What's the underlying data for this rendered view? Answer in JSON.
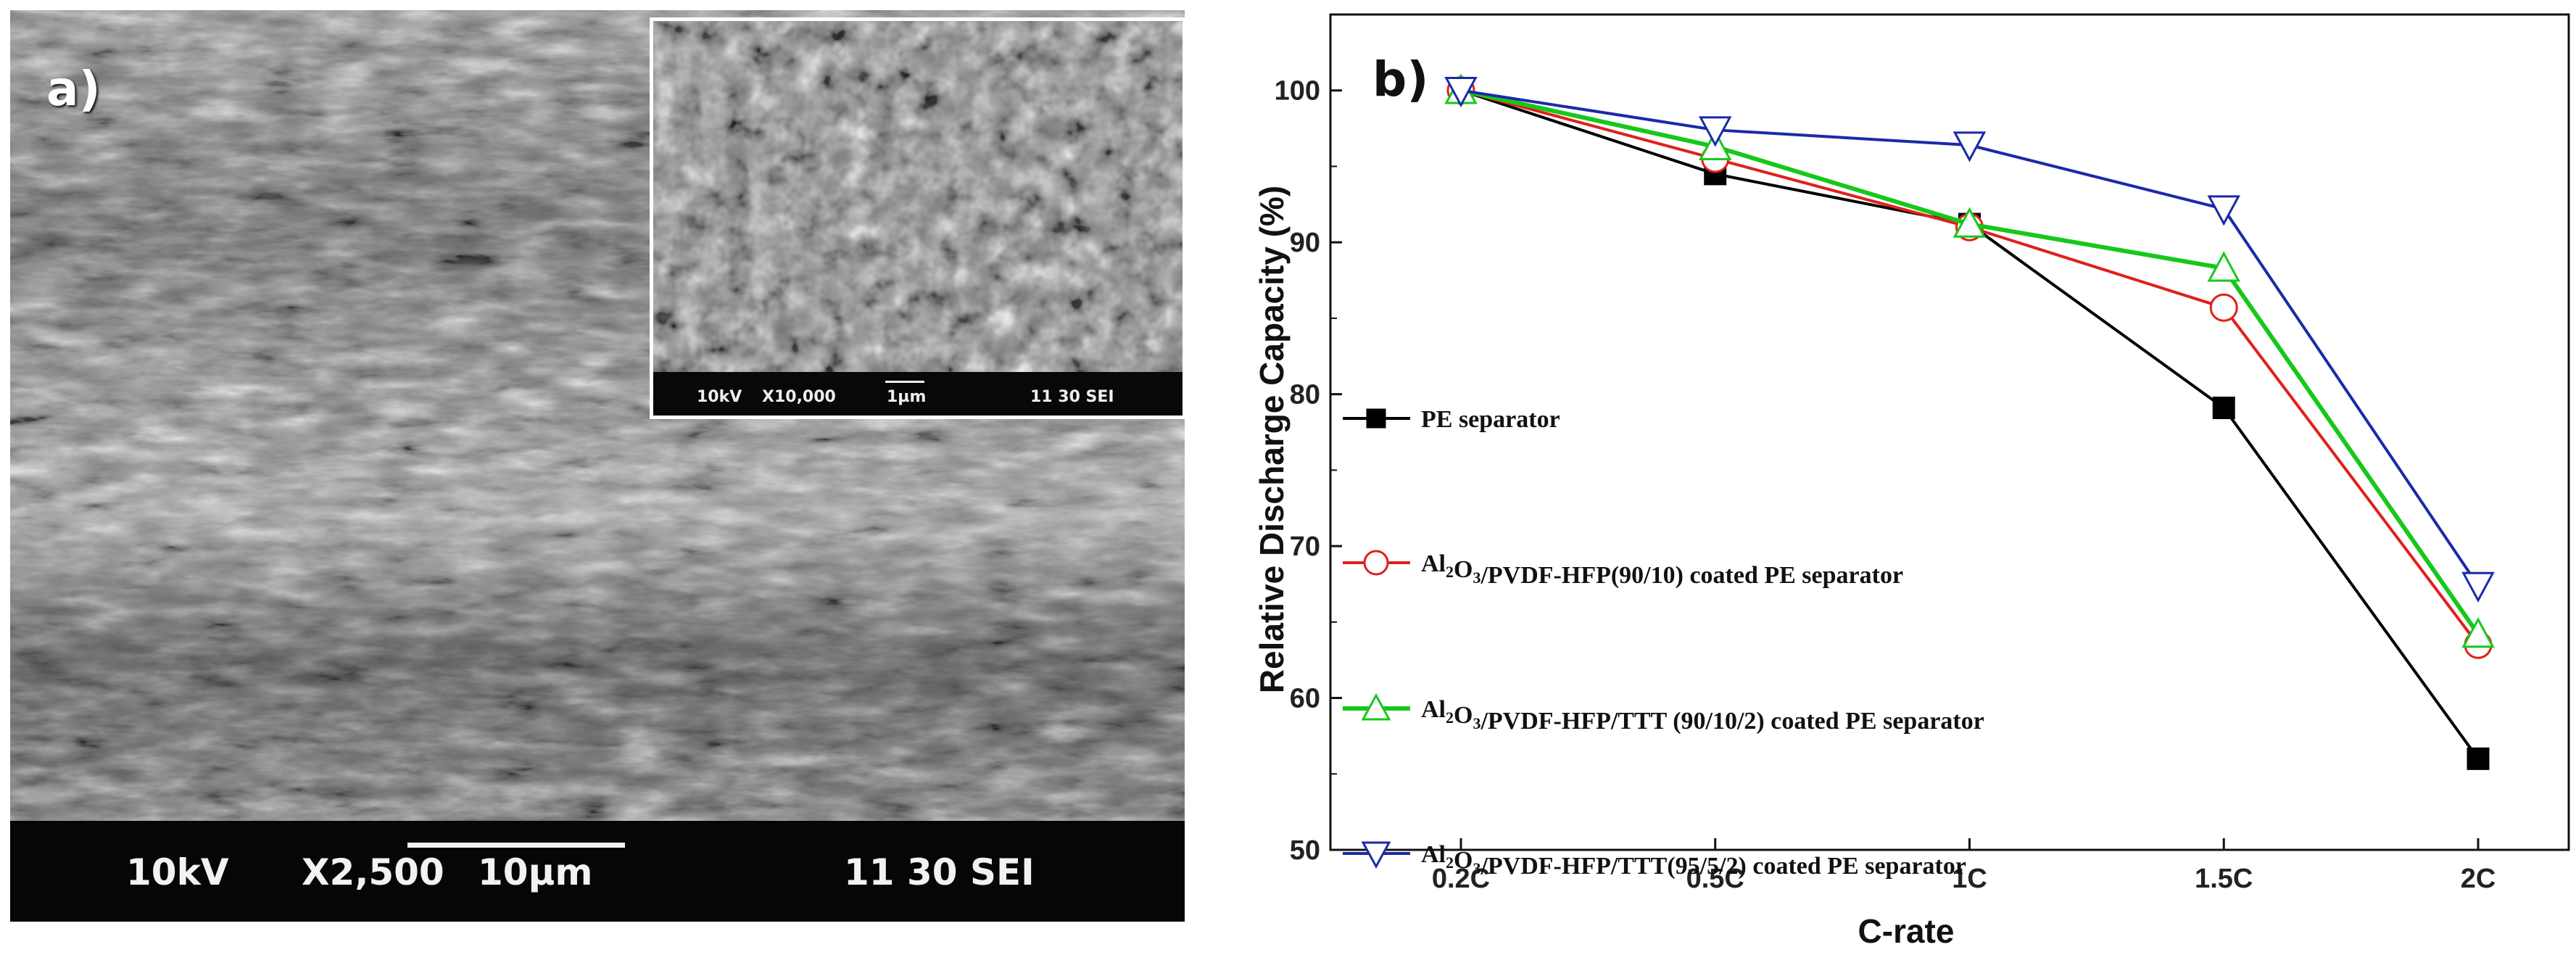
{
  "panel_a": {
    "label": "a)",
    "main_info": {
      "voltage": "10kV",
      "magnification": "X2,500",
      "scale": "10µm",
      "id": "11 30 SEI"
    },
    "inset_info": {
      "voltage": "10kV",
      "magnification": "X10,000",
      "scale": "1µm",
      "id": "11 30 SEI"
    }
  },
  "chart_data": {
    "type": "line",
    "panel_label": "b)",
    "title": "",
    "xlabel": "C-rate",
    "ylabel": "Relative Discharge Capacity  (%)",
    "categories": [
      "0.2C",
      "0.5C",
      "1C",
      "1.5C",
      "2C"
    ],
    "ylim": [
      50,
      105
    ],
    "yticks": [
      50,
      60,
      70,
      80,
      90,
      100
    ],
    "grid": false,
    "legend_position": "center-left",
    "series": [
      {
        "name": "PE separator",
        "name_parts": [
          "PE separator"
        ],
        "color": "#000000",
        "marker": "filled-square",
        "values": [
          100,
          94.5,
          91.2,
          79.1,
          56.0
        ]
      },
      {
        "name": "Al2O3/PVDF-HFP(90/10)  coated PE separator",
        "name_parts": [
          "Al",
          "2",
          "O",
          "3",
          "/PVDF-HFP(90/10)  coated PE separator"
        ],
        "color": "#e0201b",
        "marker": "open-circle",
        "values": [
          100,
          95.5,
          91.0,
          85.7,
          63.5
        ]
      },
      {
        "name": "Al2O3/PVDF-HFP/TTT  (90/10/2) coated PE separator",
        "name_parts": [
          "Al",
          "2",
          "O",
          "3",
          "/PVDF-HFP/TTT  (90/10/2) coated PE separator"
        ],
        "color": "#16c81a",
        "marker": "open-triangle-up",
        "values": [
          100,
          96.3,
          91.2,
          88.3,
          64.2
        ]
      },
      {
        "name": "Al2O3/PVDF-HFP/TTT(95/5/2)  coated PE separator",
        "name_parts": [
          "Al",
          "2",
          "O",
          "3",
          "/PVDF-HFP/TTT(95/5/2)  coated PE separator"
        ],
        "color": "#1a2aa8",
        "marker": "open-triangle-down",
        "values": [
          100,
          97.4,
          96.4,
          92.2,
          67.4
        ]
      }
    ]
  }
}
